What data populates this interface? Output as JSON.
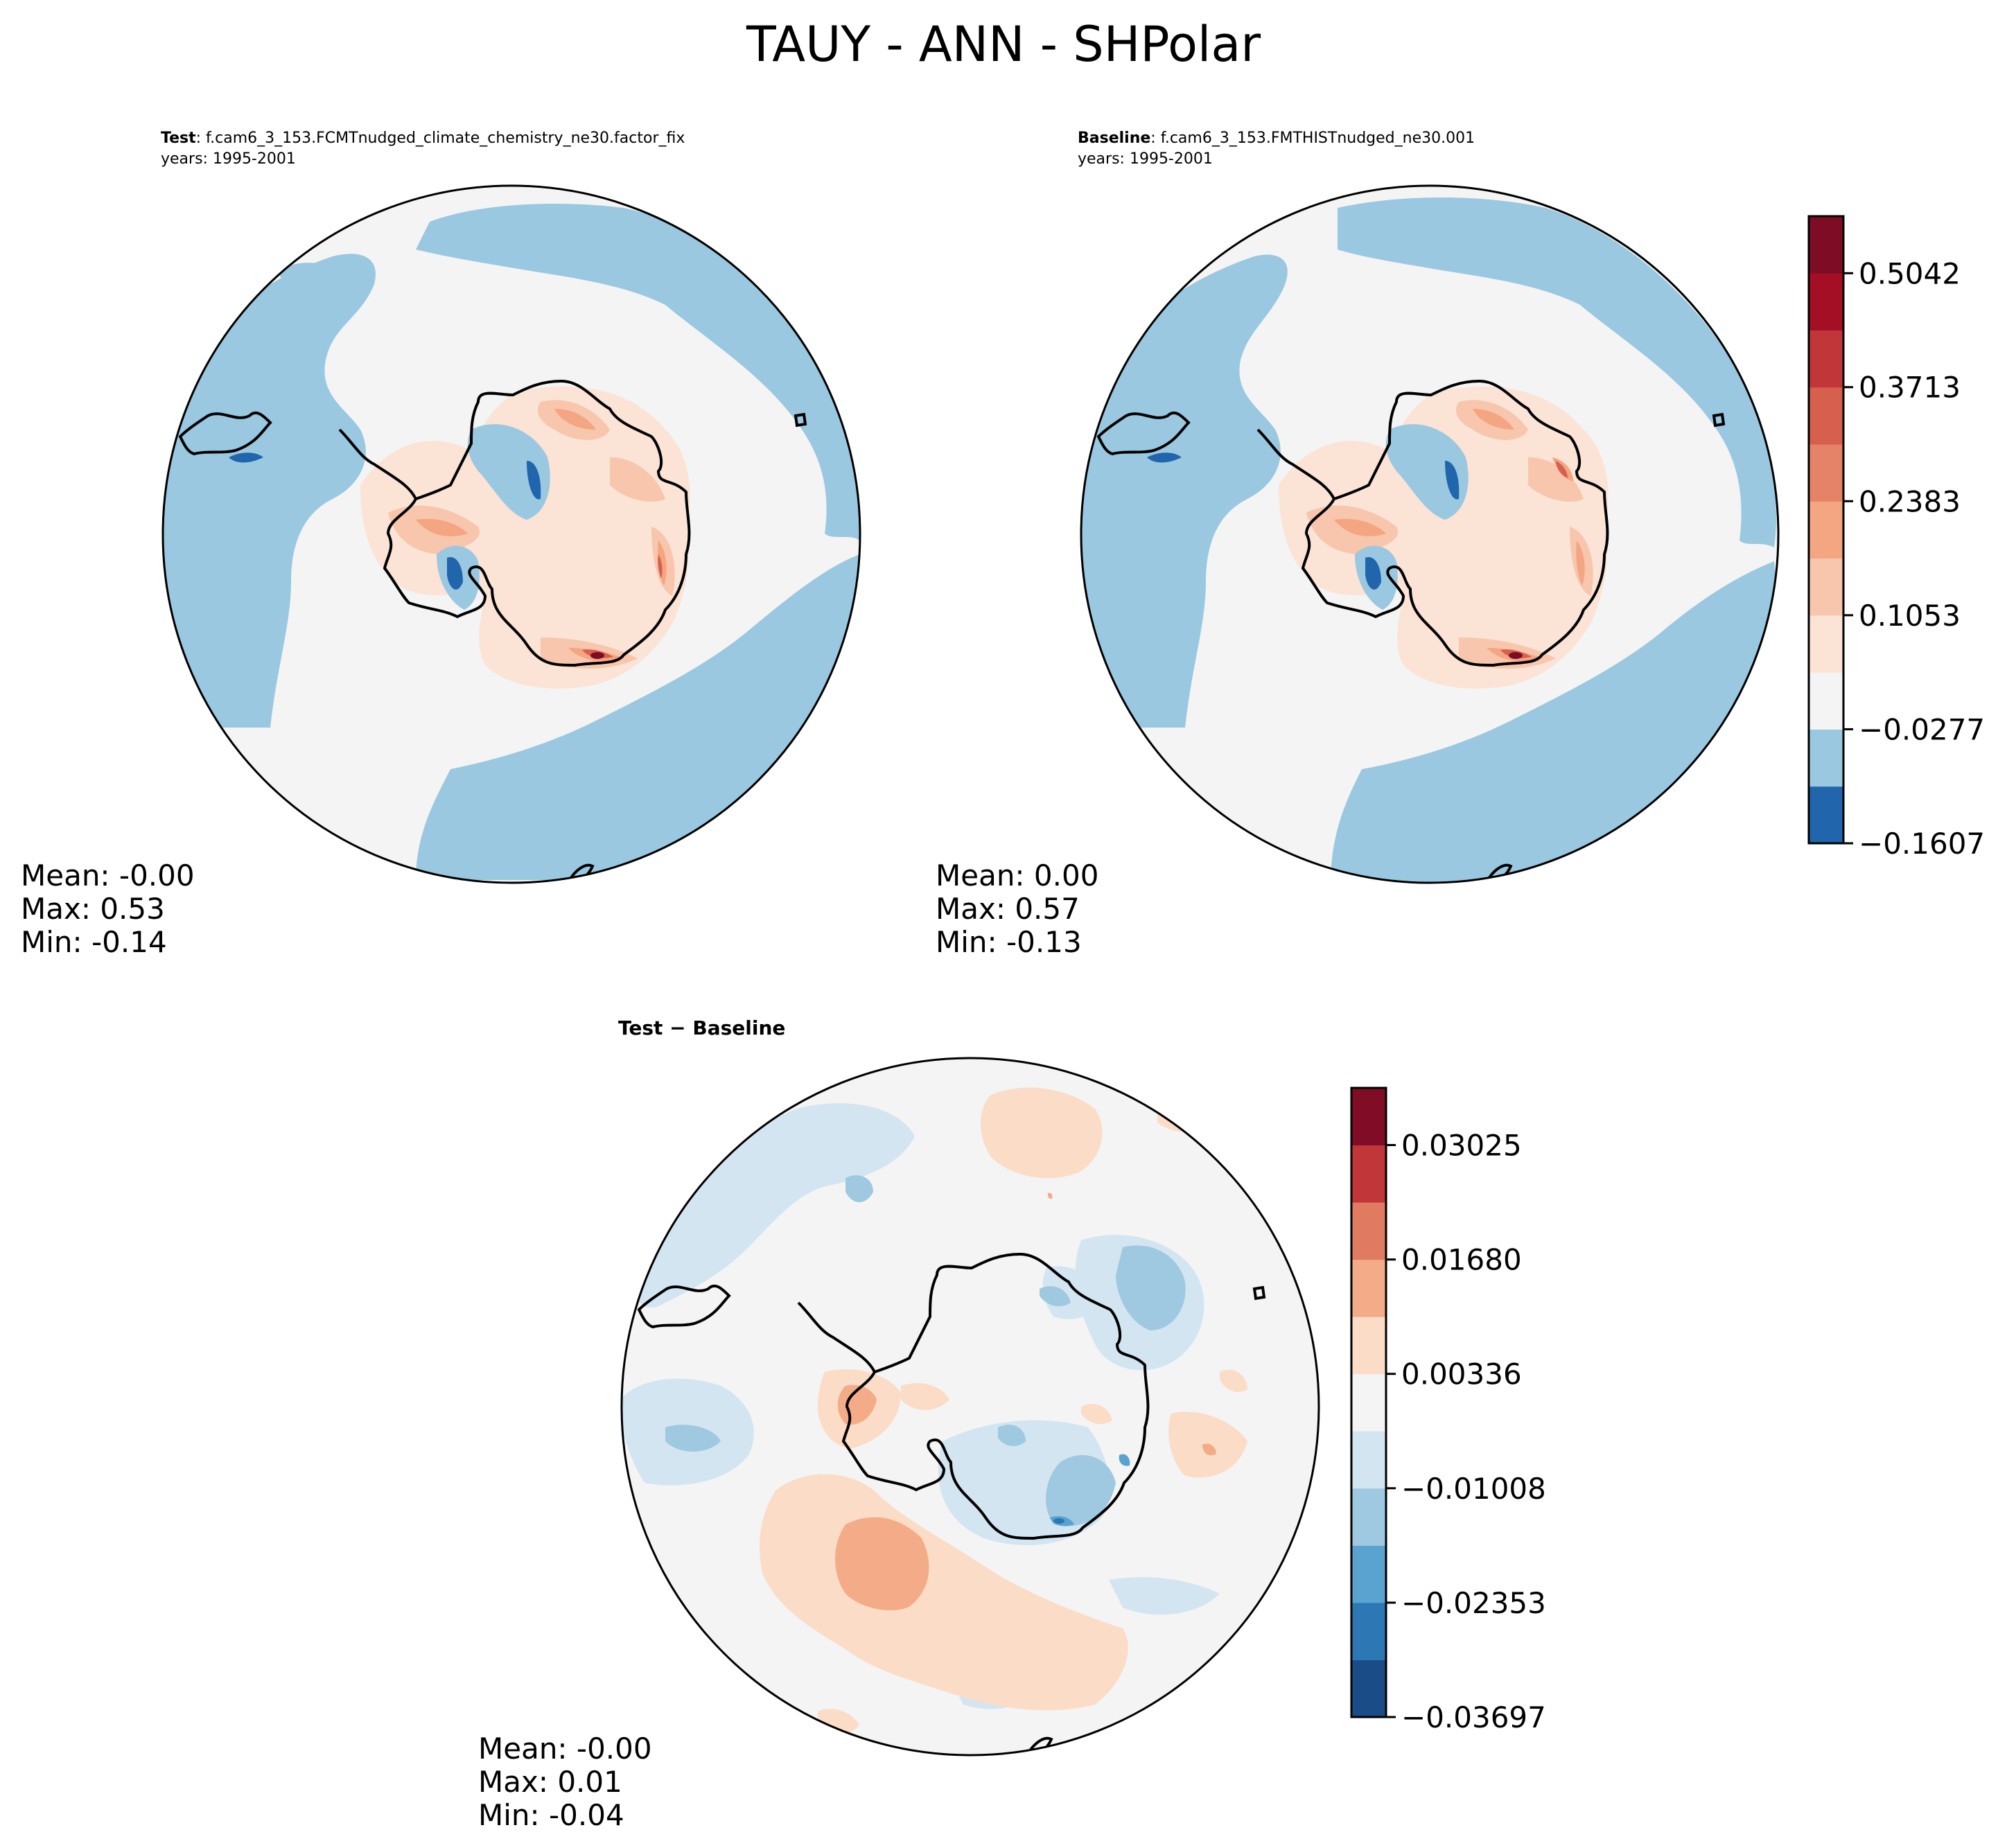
{
  "figure": {
    "title": "TAUY - ANN - SHPolar"
  },
  "panels": {
    "test": {
      "label_bold": "Test",
      "label_rest": ": f.cam6_3_153.FCMTnudged_climate_chemistry_ne30.factor_fix",
      "years": "years: 1995-2001",
      "stats": [
        "Mean: -0.00",
        "Max:  0.53",
        "Min: -0.14"
      ]
    },
    "baseline": {
      "label_bold": "Baseline",
      "label_rest": ": f.cam6_3_153.FMTHISTnudged_ne30.001",
      "years": "years: 1995-2001",
      "stats": [
        "Mean:  0.00",
        "Max:  0.57",
        "Min: -0.13"
      ]
    },
    "diff": {
      "title": "Test − Baseline",
      "stats": [
        "Mean: -0.00",
        "Max:  0.01",
        "Min: -0.04"
      ]
    }
  },
  "colors": {
    "map_main": [
      "#2166ac",
      "#9ac8e0",
      "#f4f4f4",
      "#fbe3d6",
      "#f7c6ac",
      "#f4a582",
      "#e58368",
      "#d6604d",
      "#c13639",
      "#a50f26",
      "#7e0c25"
    ],
    "map_diff": [
      "#1a4d87",
      "#2d77b5",
      "#5aa2cf",
      "#9ec9e1",
      "#d3e5f1",
      "#f4f4f4",
      "#fbdcc7",
      "#f4ac88",
      "#e07a60",
      "#c13639",
      "#800d25"
    ],
    "coastline": "#000000"
  },
  "chart_data": [
    {
      "type": "heatmap",
      "subtype": "polar-stereographic-filled-contour",
      "variable": "TAUY",
      "panel": "test",
      "title": "Test : f.cam6_3_153.FCMTnudged_climate_chemistry_ne30.factor_fix",
      "levels": [
        -0.1607,
        -0.0942,
        -0.0277,
        0.0388,
        0.1053,
        0.1718,
        0.2383,
        0.3048,
        0.3713,
        0.4378,
        0.5042,
        0.5707
      ],
      "mean": -0.0,
      "max": 0.53,
      "min": -0.14
    },
    {
      "type": "heatmap",
      "subtype": "polar-stereographic-filled-contour",
      "variable": "TAUY",
      "panel": "baseline",
      "title": "Baseline : f.cam6_3_153.FMTHISTnudged_ne30.001",
      "levels": [
        -0.1607,
        -0.0942,
        -0.0277,
        0.0388,
        0.1053,
        0.1718,
        0.2383,
        0.3048,
        0.3713,
        0.4378,
        0.5042,
        0.5707
      ],
      "colorbar_ticks": [
        "0.5042",
        "0.3713",
        "0.2383",
        "0.1053",
        "−0.0277",
        "−0.1607"
      ],
      "mean": 0.0,
      "max": 0.57,
      "min": -0.13
    },
    {
      "type": "heatmap",
      "subtype": "polar-stereographic-filled-contour",
      "variable": "TAUY",
      "panel": "diff",
      "title": "Test − Baseline",
      "levels": [
        -0.03697,
        -0.03025,
        -0.02353,
        -0.0168,
        -0.01008,
        -0.00336,
        0.00336,
        0.01008,
        0.0168,
        0.02353,
        0.03025,
        0.03697
      ],
      "colorbar_ticks": [
        "0.03025",
        "0.01680",
        "0.00336",
        "−0.01008",
        "−0.02353",
        "−0.03697"
      ],
      "mean": -0.0,
      "max": 0.01,
      "min": -0.04
    }
  ]
}
